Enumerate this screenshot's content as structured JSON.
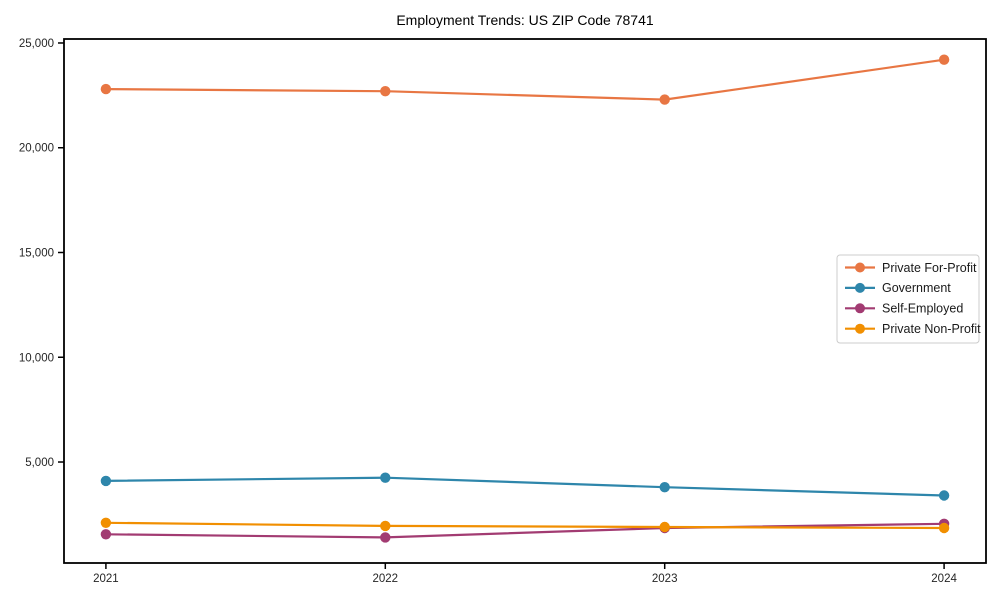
{
  "chart_data": {
    "type": "line",
    "title": "Employment Trends: US ZIP Code 78741",
    "xlabel": "",
    "ylabel": "",
    "categories": [
      "2021",
      "2022",
      "2023",
      "2024"
    ],
    "series": [
      {
        "name": "Private For-Profit",
        "color": "#E87643",
        "values": [
          22800,
          22700,
          22300,
          24200
        ]
      },
      {
        "name": "Government",
        "color": "#2E86AB",
        "values": [
          4100,
          4250,
          3800,
          3400
        ]
      },
      {
        "name": "Self-Employed",
        "color": "#A23B72",
        "values": [
          1550,
          1400,
          1850,
          2050
        ]
      },
      {
        "name": "Private Non-Profit",
        "color": "#F18F01",
        "values": [
          2100,
          1950,
          1900,
          1850
        ]
      }
    ],
    "ylim": [
      180,
      25190
    ],
    "yticks": {
      "values": [
        5000,
        10000,
        15000,
        20000,
        25000
      ],
      "labels": [
        "5,000",
        "10,000",
        "15,000",
        "20,000",
        "25,000"
      ]
    },
    "grid": false,
    "legend_position": "center-right",
    "frame_color": "#000000"
  }
}
